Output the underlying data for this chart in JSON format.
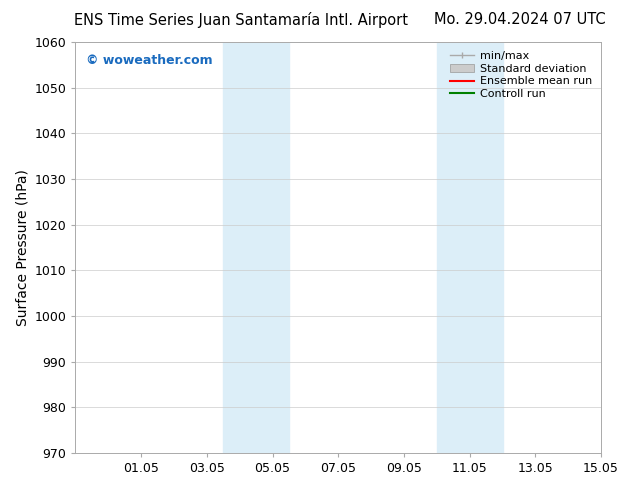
{
  "title_left": "ENS Time Series Juan Santamaría Intl. Airport",
  "title_right": "Mo. 29.04.2024 07 UTC",
  "ylabel": "Surface Pressure (hPa)",
  "xlabel": "",
  "ylim": [
    970,
    1060
  ],
  "ytick_step": 10,
  "xlim": [
    0,
    16
  ],
  "xtick_positions": [
    2,
    4,
    6,
    8,
    10,
    12,
    14,
    16
  ],
  "xtick_labels": [
    "01.05",
    "03.05",
    "05.05",
    "07.05",
    "09.05",
    "11.05",
    "13.05",
    "15.05"
  ],
  "shaded_bands": [
    {
      "x_start": 4.5,
      "x_end": 6.5
    },
    {
      "x_start": 11.0,
      "x_end": 13.0
    }
  ],
  "shaded_color": "#dceef8",
  "watermark_text": "© woweather.com",
  "watermark_color": "#1a6bbf",
  "legend_items": [
    {
      "label": "min/max",
      "color": "#aaaaaa"
    },
    {
      "label": "Standard deviation",
      "color": "#cccccc"
    },
    {
      "label": "Ensemble mean run",
      "color": "#ff0000"
    },
    {
      "label": "Controll run",
      "color": "#008000"
    }
  ],
  "bg_color": "#ffffff",
  "grid_color": "#cccccc",
  "title_fontsize": 10.5,
  "ylabel_fontsize": 10,
  "tick_fontsize": 9,
  "watermark_fontsize": 9,
  "legend_fontsize": 8
}
